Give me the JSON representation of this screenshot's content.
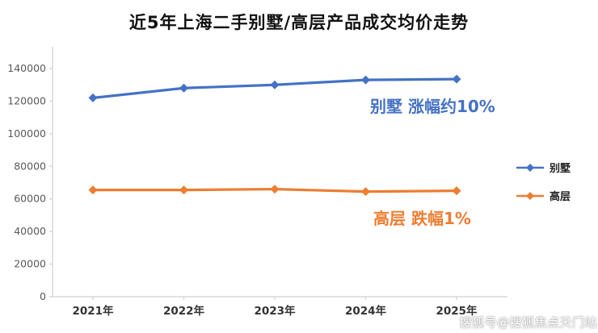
{
  "title": "近5年上海二手别墅/高层产品成交均价走势",
  "annotations": {
    "villa": "别墅 涨幅约10%",
    "highrise": "高层 跌幅1%"
  },
  "watermark": "搜狐号@搜狐焦点天门站",
  "colors": {
    "villa": "#4472C4",
    "highrise": "#ED7D31",
    "axis": "#d9d9d9",
    "tick_text": "#595959",
    "xlabel_text": "#333333"
  },
  "chart_data": {
    "type": "line",
    "title": "近5年上海二手别墅/高层产品成交均价走势",
    "categories": [
      "2021年",
      "2022年",
      "2023年",
      "2024年",
      "2025年"
    ],
    "series": [
      {
        "name": "别墅",
        "color": "#4472C4",
        "values": [
          122000,
          128000,
          130000,
          133000,
          133500
        ]
      },
      {
        "name": "高层",
        "color": "#ED7D31",
        "values": [
          65500,
          65500,
          66000,
          64500,
          65000
        ]
      }
    ],
    "ylim": [
      0,
      140000
    ],
    "ytick_step": 20000,
    "xlabel": "",
    "ylabel": "",
    "grid": false,
    "legend_position": "right",
    "marker": "diamond"
  }
}
